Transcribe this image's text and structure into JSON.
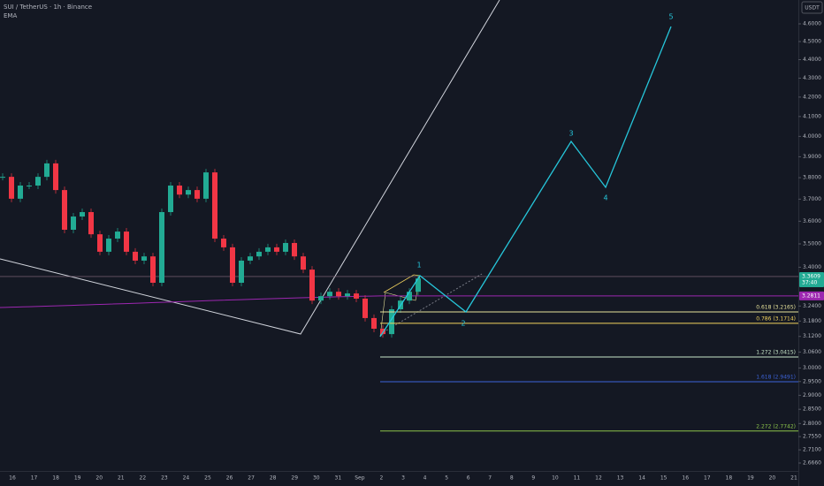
{
  "header": {
    "symbol": "SUI / TetherUS · 1h · Binance",
    "indicator": "EMA",
    "currency": "USDT"
  },
  "price_axis": {
    "log": true,
    "ticks": [
      {
        "value": 4.6,
        "label": "4.6000"
      },
      {
        "value": 4.5,
        "label": "4.5000"
      },
      {
        "value": 4.4,
        "label": "4.4000"
      },
      {
        "value": 4.3,
        "label": "4.3000"
      },
      {
        "value": 4.2,
        "label": "4.2000"
      },
      {
        "value": 4.1,
        "label": "4.1000"
      },
      {
        "value": 4.0,
        "label": "4.0000"
      },
      {
        "value": 3.9,
        "label": "3.9000"
      },
      {
        "value": 3.8,
        "label": "3.8000"
      },
      {
        "value": 3.7,
        "label": "3.7000"
      },
      {
        "value": 3.6,
        "label": "3.6000"
      },
      {
        "value": 3.5,
        "label": "3.5000"
      },
      {
        "value": 3.4,
        "label": "3.4000"
      },
      {
        "value": 3.24,
        "label": "3.2400"
      },
      {
        "value": 3.18,
        "label": "3.1800"
      },
      {
        "value": 3.12,
        "label": "3.1200"
      },
      {
        "value": 3.06,
        "label": "3.0600"
      },
      {
        "value": 3.0,
        "label": "3.0000"
      },
      {
        "value": 2.95,
        "label": "2.9500"
      },
      {
        "value": 2.9,
        "label": "2.9000"
      },
      {
        "value": 2.85,
        "label": "2.8500"
      },
      {
        "value": 2.8,
        "label": "2.8000"
      },
      {
        "value": 2.755,
        "label": "2.7550"
      },
      {
        "value": 2.71,
        "label": "2.7100"
      },
      {
        "value": 2.666,
        "label": "2.6660"
      }
    ],
    "current_price": {
      "value": 3.3609,
      "label": "3.3609",
      "countdown": "37:40",
      "color": "#22ab94"
    },
    "ema_price": {
      "value": 3.2811,
      "label": "3.2811",
      "color": "#9c27b0"
    }
  },
  "date_axis": [
    "16",
    "17",
    "18",
    "19",
    "20",
    "21",
    "22",
    "23",
    "24",
    "25",
    "26",
    "27",
    "28",
    "29",
    "30",
    "31",
    "Sep",
    "2",
    "3",
    "4",
    "5",
    "6",
    "7",
    "8",
    "9",
    "10",
    "11",
    "12",
    "13",
    "14",
    "15",
    "16",
    "17",
    "18",
    "19",
    "20",
    "21"
  ],
  "price_history": {
    "up_color": "#22ab94",
    "down_color": "#f23645",
    "closes": [
      3.804,
      3.702,
      3.763,
      3.763,
      3.804,
      3.868,
      3.742,
      3.562,
      3.621,
      3.641,
      3.542,
      3.466,
      3.523,
      3.554,
      3.466,
      3.428,
      3.446,
      3.335,
      3.641,
      3.763,
      3.721,
      3.742,
      3.702,
      3.825,
      3.523,
      3.485,
      3.335,
      3.428,
      3.446,
      3.466,
      3.485,
      3.466,
      3.504,
      3.446,
      3.39,
      3.262,
      3.28,
      3.298,
      3.28,
      3.291,
      3.27,
      3.192,
      3.15,
      3.129,
      3.227,
      3.262,
      3.298,
      3.353
    ]
  },
  "fib_levels": [
    {
      "label": "0.618 (3.2165)",
      "price": 3.2165,
      "color": "#e6e29a"
    },
    {
      "label": "0.786 (3.1714)",
      "price": 3.1714,
      "color": "#f2d35e"
    },
    {
      "label": "1.272 (3.0415)",
      "price": 3.0415,
      "color": "#c8e6c9"
    },
    {
      "label": "1.618 (2.9491)",
      "price": 2.9491,
      "color": "#3d63d8"
    },
    {
      "label": "2.272 (2.7742)",
      "price": 2.7742,
      "color": "#8bc34a"
    }
  ],
  "wave_labels": [
    "1",
    "2",
    "3",
    "4",
    "5"
  ]
}
